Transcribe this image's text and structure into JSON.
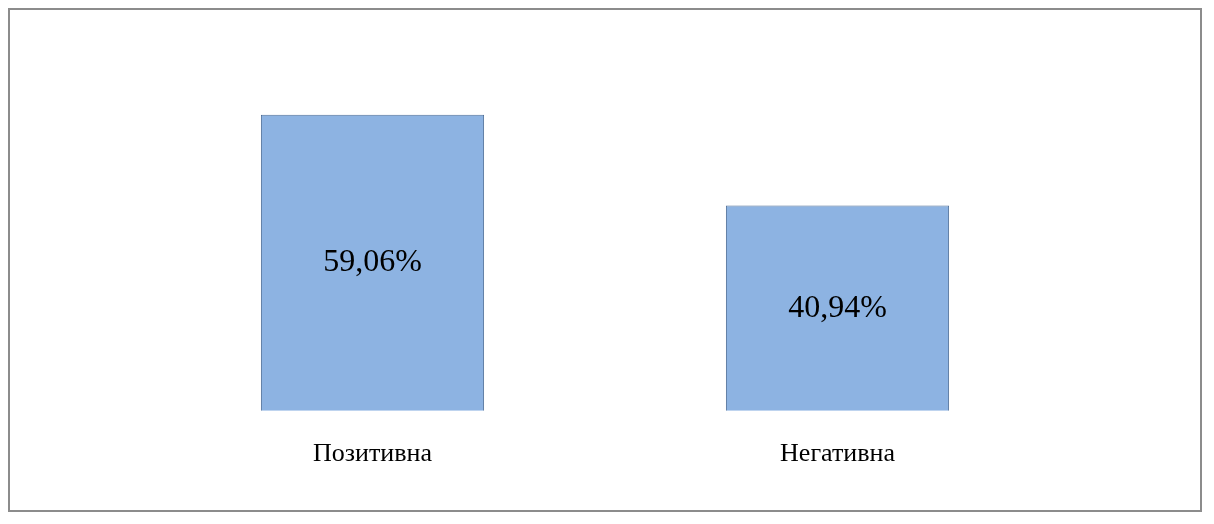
{
  "chart_data": {
    "type": "bar",
    "categories": [
      "Позитивна",
      "Негативна"
    ],
    "values": [
      59.06,
      40.94
    ],
    "value_labels": [
      "59,06%",
      "40,94%"
    ],
    "color": "#8db3e2",
    "grid": false,
    "legend": false
  }
}
